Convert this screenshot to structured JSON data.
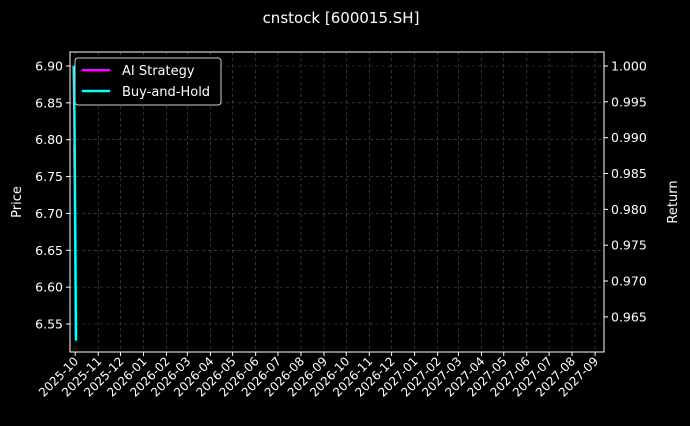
{
  "chart_data": {
    "type": "line",
    "title": "cnstock [600015.SH]",
    "ylabel_left": "Price",
    "ylabel_right": "Return",
    "x": [
      "2025-09-29",
      "2025-09-30",
      "2025-10-02"
    ],
    "price": [
      6.79,
      6.74,
      6.53
    ],
    "series": [
      {
        "name": "AI Strategy",
        "axis": "right",
        "color": "#ff00ff",
        "values": [
          1.0,
          1.0,
          1.0
        ]
      },
      {
        "name": "Buy-and-Hold",
        "axis": "right",
        "color": "#00ffff",
        "values": [
          1.0,
          0.9926,
          0.9617
        ]
      }
    ],
    "price_color": "#00a000",
    "xlim": [
      "2025-09-24",
      "2027-09-13"
    ],
    "ylim_left": [
      6.512,
      6.919
    ],
    "ylim_right": [
      0.9601,
      1.00195
    ],
    "xticks": [
      "2025-10",
      "2025-11",
      "2025-12",
      "2026-01",
      "2026-02",
      "2026-03",
      "2026-04",
      "2026-05",
      "2026-06",
      "2026-07",
      "2026-08",
      "2026-09",
      "2026-10",
      "2026-11",
      "2026-12",
      "2027-01",
      "2027-02",
      "2027-03",
      "2027-04",
      "2027-05",
      "2027-06",
      "2027-07",
      "2027-08",
      "2027-09"
    ],
    "yticks_left": [
      "6.55",
      "6.60",
      "6.65",
      "6.70",
      "6.75",
      "6.80",
      "6.85",
      "6.90"
    ],
    "yticks_right": [
      "0.965",
      "0.970",
      "0.975",
      "0.980",
      "0.985",
      "0.990",
      "0.995",
      "1.000"
    ],
    "grid": true,
    "legend": "top-left"
  }
}
